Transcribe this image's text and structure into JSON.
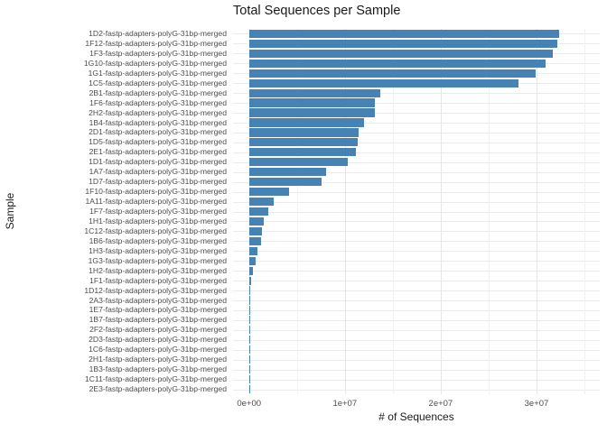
{
  "chart_data": {
    "type": "bar",
    "orientation": "horizontal",
    "title": "Total Sequences per Sample",
    "xlabel": "# of Sequences",
    "ylabel": "Sample",
    "bar_color": "#4682B4",
    "grid": true,
    "legend": false,
    "xlim": [
      0,
      36600000
    ],
    "x_major_ticks": [
      {
        "value": 0,
        "label": "0e+00"
      },
      {
        "value": 10000000,
        "label": "1e+07"
      },
      {
        "value": 20000000,
        "label": "2e+07"
      },
      {
        "value": 30000000,
        "label": "3e+07"
      }
    ],
    "x_minor_ticks": [
      5000000,
      15000000,
      25000000,
      35000000
    ],
    "categories": [
      "1D2-fastp-adapters-polyG-31bp-merged",
      "1F12-fastp-adapters-polyG-31bp-merged",
      "1F3-fastp-adapters-polyG-31bp-merged",
      "1G10-fastp-adapters-polyG-31bp-merged",
      "1G1-fastp-adapters-polyG-31bp-merged",
      "1C5-fastp-adapters-polyG-31bp-merged",
      "2B1-fastp-adapters-polyG-31bp-merged",
      "1F6-fastp-adapters-polyG-31bp-merged",
      "2H2-fastp-adapters-polyG-31bp-merged",
      "1B4-fastp-adapters-polyG-31bp-merged",
      "2D1-fastp-adapters-polyG-31bp-merged",
      "1D5-fastp-adapters-polyG-31bp-merged",
      "2E1-fastp-adapters-polyG-31bp-merged",
      "1D1-fastp-adapters-polyG-31bp-merged",
      "1A7-fastp-adapters-polyG-31bp-merged",
      "1D7-fastp-adapters-polyG-31bp-merged",
      "1F10-fastp-adapters-polyG-31bp-merged",
      "1A11-fastp-adapters-polyG-31bp-merged",
      "1F7-fastp-adapters-polyG-31bp-merged",
      "1H1-fastp-adapters-polyG-31bp-merged",
      "1C12-fastp-adapters-polyG-31bp-merged",
      "1B6-fastp-adapters-polyG-31bp-merged",
      "1H3-fastp-adapters-polyG-31bp-merged",
      "1G3-fastp-adapters-polyG-31bp-merged",
      "1H2-fastp-adapters-polyG-31bp-merged",
      "1F1-fastp-adapters-polyG-31bp-merged",
      "1D12-fastp-adapters-polyG-31bp-merged",
      "2A3-fastp-adapters-polyG-31bp-merged",
      "1E7-fastp-adapters-polyG-31bp-merged",
      "1B7-fastp-adapters-polyG-31bp-merged",
      "2F2-fastp-adapters-polyG-31bp-merged",
      "2D3-fastp-adapters-polyG-31bp-merged",
      "1C6-fastp-adapters-polyG-31bp-merged",
      "2H1-fastp-adapters-polyG-31bp-merged",
      "1B3-fastp-adapters-polyG-31bp-merged",
      "1C11-fastp-adapters-polyG-31bp-merged",
      "2E3-fastp-adapters-polyG-31bp-merged"
    ],
    "values": [
      32400000,
      32200000,
      31700000,
      30900000,
      29900000,
      28100000,
      13650000,
      13150000,
      13150000,
      12000000,
      11450000,
      11350000,
      11150000,
      10300000,
      8000000,
      7600000,
      4200000,
      2600000,
      2050000,
      1500000,
      1370000,
      1250000,
      870000,
      720000,
      450000,
      190000,
      90000,
      80000,
      80000,
      70000,
      70000,
      90000,
      25000,
      15000,
      12000,
      10000,
      8000
    ]
  }
}
